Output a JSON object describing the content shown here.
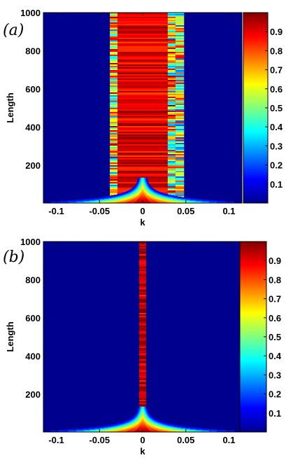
{
  "chart_data": [
    {
      "type": "heatmap",
      "panel_label": "(a)",
      "title": "",
      "xlabel": "k",
      "ylabel": "Length",
      "xlim": [
        -0.115,
        0.115
      ],
      "ylim": [
        1,
        1000
      ],
      "xticks": [
        "-0.1",
        "-0.05",
        "0",
        "0.05",
        "0.1"
      ],
      "xtick_values": [
        -0.1,
        -0.05,
        0,
        0.05,
        0.1
      ],
      "yticks": [
        "200",
        "400",
        "600",
        "800",
        "1000"
      ],
      "ytick_values": [
        200,
        400,
        600,
        800,
        1000
      ],
      "colorbar": {
        "range": [
          0.0,
          1.0
        ],
        "ticks": [
          "0.1",
          "0.2",
          "0.3",
          "0.4",
          "0.5",
          "0.6",
          "0.7",
          "0.8",
          "0.9"
        ],
        "tick_values": [
          0.1,
          0.2,
          0.3,
          0.4,
          0.5,
          0.6,
          0.7,
          0.8,
          0.9
        ],
        "colormap": "jet"
      },
      "bands": [
        {
          "k": [
            -0.038,
            -0.029
          ],
          "value": 0.62
        },
        {
          "k": [
            -0.029,
            0.029
          ],
          "value": 0.9
        },
        {
          "k": [
            0.029,
            0.038
          ],
          "value": 0.62
        },
        {
          "k": [
            0.038,
            0.048
          ],
          "value": 0.55
        }
      ],
      "background_value": 0.05,
      "spread_at_low_length": 0.11
    },
    {
      "type": "heatmap",
      "panel_label": "(b)",
      "title": "",
      "xlabel": "k",
      "ylabel": "Length",
      "xlim": [
        -0.115,
        0.115
      ],
      "ylim": [
        1,
        1000
      ],
      "xticks": [
        "-0.1",
        "-0.05",
        "0",
        "0.05",
        "0.1"
      ],
      "xtick_values": [
        -0.1,
        -0.05,
        0,
        0.05,
        0.1
      ],
      "yticks": [
        "200",
        "400",
        "600",
        "800",
        "1000"
      ],
      "ytick_values": [
        200,
        400,
        600,
        800,
        1000
      ],
      "colorbar": {
        "range": [
          0.0,
          1.0
        ],
        "ticks": [
          "0.1",
          "0.2",
          "0.3",
          "0.4",
          "0.5",
          "0.6",
          "0.7",
          "0.8",
          "0.9"
        ],
        "tick_values": [
          0.1,
          0.2,
          0.3,
          0.4,
          0.5,
          0.6,
          0.7,
          0.8,
          0.9
        ],
        "colormap": "jet"
      },
      "bands": [
        {
          "k": [
            -0.004,
            0.004
          ],
          "value": 0.93
        }
      ],
      "background_value": 0.05,
      "spread_at_low_length": 0.11
    }
  ]
}
